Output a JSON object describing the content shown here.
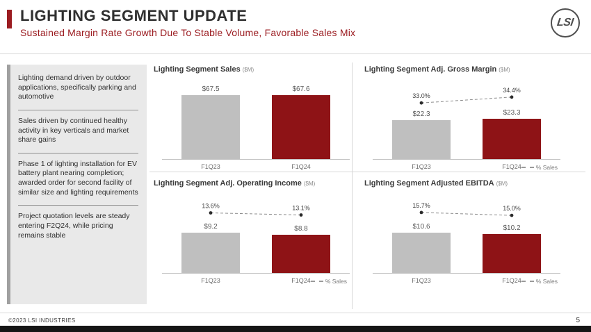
{
  "slide": {
    "title": "LIGHTING SEGMENT UPDATE",
    "subtitle": "Sustained Margin Rate Growth Due To Stable Volume, Favorable Sales Mix",
    "logo_text": "LSI",
    "footer_copyright": "©2023 LSI INDUSTRIES",
    "page_number": "5"
  },
  "sidebar": {
    "bullets": [
      "Lighting demand driven by outdoor applications, specifically parking and automotive",
      "Sales driven by continued healthy activity in key verticals and market share gains",
      "Phase 1 of lighting installation for EV battery plant nearing completion; awarded order for second facility of similar size and lighting requirements",
      "Project quotation levels are steady entering F2Q24, while pricing remains stable"
    ]
  },
  "colors": {
    "accent_red": "#9b1c21",
    "bar_red": "#8e1316",
    "bar_gray": "#bfbfbf",
    "sidebar_bg": "#e9e9e9",
    "sidebar_accent": "#a0a0a0"
  },
  "chart_data": [
    {
      "type": "bar",
      "title": "Lighting Segment Sales",
      "unit": "($M)",
      "categories": [
        "F1Q23",
        "F1Q24"
      ],
      "values": [
        67.5,
        67.6
      ],
      "value_labels": [
        "$67.5",
        "$67.6"
      ]
    },
    {
      "type": "bar",
      "title": "Lighting Segment Adj. Gross Margin",
      "unit": "($M)",
      "categories": [
        "F1Q23",
        "F1Q24"
      ],
      "values": [
        22.3,
        23.3
      ],
      "value_labels": [
        "$22.3",
        "$23.3"
      ],
      "pct_values": [
        33.0,
        34.4
      ],
      "pct_labels": [
        "33.0%",
        "34.4%"
      ],
      "legend": "% Sales"
    },
    {
      "type": "bar",
      "title": "Lighting Segment Adj. Operating Income",
      "unit": "($M)",
      "categories": [
        "F1Q23",
        "F1Q24"
      ],
      "values": [
        9.2,
        8.8
      ],
      "value_labels": [
        "$9.2",
        "$8.8"
      ],
      "pct_values": [
        13.6,
        13.1
      ],
      "pct_labels": [
        "13.6%",
        "13.1%"
      ],
      "legend": "% Sales"
    },
    {
      "type": "bar",
      "title": "Lighting Segment Adjusted EBITDA",
      "unit": "($M)",
      "categories": [
        "F1Q23",
        "F1Q24"
      ],
      "values": [
        10.6,
        10.2
      ],
      "value_labels": [
        "$10.6",
        "$10.2"
      ],
      "pct_values": [
        15.7,
        15.0
      ],
      "pct_labels": [
        "15.7%",
        "15.0%"
      ],
      "legend": "% Sales"
    }
  ]
}
